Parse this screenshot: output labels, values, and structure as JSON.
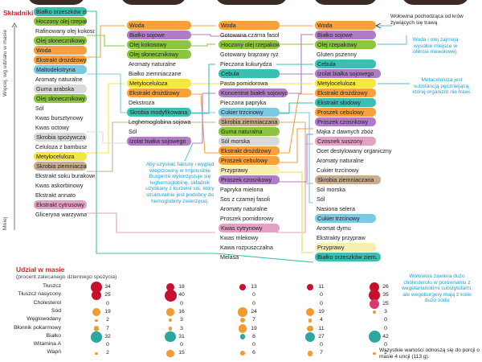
{
  "titles": {
    "ingredients": "Składniki",
    "more": "Więcej, wg udziału w masie",
    "less": "Mniej",
    "nutrition": "Udział w masie",
    "nutrition_sub": "(procent zalecanego dziennego spożycia)",
    "footer": "Wszystkie wartości odnoszą się do porcji o masie 4 uncji (113 g)."
  },
  "notes": {
    "beef": "Wołowina pochodząca od krów żywiących się trawą",
    "water_oil": "Woda i olej zajmują wysokie miejsce w ofercie niewołowej.",
    "methyl": "Metaceluloza jest substancją pęczniejącą, której organizm nie trawi.",
    "heme": "Aby uzyskać fakturę i wygląd wieprzowiny w Impossible Burgerze wykorzystuje się leghemoglobinę, składnik uzyskany z kurzenii soi, który strukturalnie jest podobny do hemoglobiny zwierzęcej.",
    "chol": "Wołowina zawiera dużo cholesterolu w porównaniu z wegetariańskimi substytutami, ale wegeburgery mają z kolei dużo sodu"
  },
  "colors": {
    "green": "#8cc63f",
    "purple": "#b07cc6",
    "yellow": "#f5e642",
    "orange": "#f7a13c",
    "teal": "#3bbfb3",
    "blue": "#7ec8e3",
    "brown": "#c9ad8f",
    "pink": "#e5a0c6",
    "gray": "#d9d9d9",
    "lightyellow": "#f7eeb0",
    "red": "#e0242f",
    "dotred": "#c8102e",
    "dotpink": "#d63b6b",
    "dotorange": "#f29b2f",
    "dotteal": "#2aa8a0"
  },
  "columns": [
    {
      "items": [
        {
          "label": "Białko orzeszków ziem.",
          "color": "teal"
        },
        {
          "label": "Hoczony olej rzepakowy",
          "color": "green"
        },
        {
          "label": "Rafinowany olej kokosowy",
          "color": "none"
        },
        {
          "label": "Olej słonecznikowy",
          "color": "green"
        },
        {
          "label": "Woda",
          "color": "orange"
        },
        {
          "label": "Ekstrakt drożdżowy",
          "color": "orange"
        },
        {
          "label": "Maltodekstryna",
          "color": "blue"
        },
        {
          "label": "Aromaty naturalne",
          "color": "none"
        },
        {
          "label": "Guma arabska",
          "color": "gray"
        },
        {
          "label": "Olej słonecznikowy",
          "color": "green"
        },
        {
          "label": "Sól",
          "color": "none"
        },
        {
          "label": "Kwas bursztynowy",
          "color": "none"
        },
        {
          "label": "Kwas octowy",
          "color": "none"
        },
        {
          "label": "Skrobia spożywcza",
          "color": "gray"
        },
        {
          "label": "Celuloza z bambusa",
          "color": "none"
        },
        {
          "label": "Metyloceluloza",
          "color": "yellow"
        },
        {
          "label": "Skrobia ziemniaczana",
          "color": "brown"
        },
        {
          "label": "Ekstrakt soku burakowego",
          "color": "none"
        },
        {
          "label": "Kwas askorbinowy",
          "color": "none"
        },
        {
          "label": "Ekstrakt annato",
          "color": "none"
        },
        {
          "label": "Ekstrakt cytrusowy",
          "color": "pink"
        },
        {
          "label": "Gliceryna warzywna",
          "color": "none"
        }
      ]
    },
    {
      "items": [
        {
          "label": "Woda",
          "color": "orange"
        },
        {
          "label": "Białko sojowe",
          "color": "purple"
        },
        {
          "label": "Olej kokosowy",
          "color": "green"
        },
        {
          "label": "Olej słonecznikowy",
          "color": "green"
        },
        {
          "label": "Aromaty naturalne",
          "color": "none"
        },
        {
          "label": "Białko ziemniaczane",
          "color": "none"
        },
        {
          "label": "Metyloceluloza",
          "color": "yellow"
        },
        {
          "label": "Ekstrakt drożdżowy",
          "color": "orange"
        },
        {
          "label": "Dekstroza",
          "color": "none"
        },
        {
          "label": "Skrobia modyfikowana",
          "color": "teal"
        },
        {
          "label": "Leghemoglobina sojowa",
          "color": "none"
        },
        {
          "label": "Sól",
          "color": "none"
        },
        {
          "label": "Izolat białka sojowego",
          "color": "purple"
        }
      ]
    },
    {
      "items": [
        {
          "label": "Woda",
          "color": "orange"
        },
        {
          "label": "Gotowana czarna fasola",
          "color": "none"
        },
        {
          "label": "Hoczony olej rzepakowy",
          "color": "green"
        },
        {
          "label": "Gotowany brązowy ryż",
          "color": "none"
        },
        {
          "label": "Pieczona kukurydza",
          "color": "none"
        },
        {
          "label": "Cebula",
          "color": "teal"
        },
        {
          "label": "Pasta pomidorowa",
          "color": "none"
        },
        {
          "label": "Koncentrat białek sojowych",
          "color": "purple"
        },
        {
          "label": "Pieczona papryka",
          "color": "none"
        },
        {
          "label": "Cukier trzcinowy",
          "color": "blue"
        },
        {
          "label": "Skrobia ziemniaczana",
          "color": "brown"
        },
        {
          "label": "Guma naturalna",
          "color": "green"
        },
        {
          "label": "Sól morska",
          "color": "gray"
        },
        {
          "label": "Ekstrakt drożdżowy",
          "color": "orange"
        },
        {
          "label": "Proszek cebulowy",
          "color": "orange"
        },
        {
          "label": "Przyprawy",
          "color": "lightyellow"
        },
        {
          "label": "Proszek czosnkowy",
          "color": "purple"
        },
        {
          "label": "Papryka mielona",
          "color": "none"
        },
        {
          "label": "Sos z czarnej fasoli",
          "color": "none"
        },
        {
          "label": "Aromaty naturalne",
          "color": "none"
        },
        {
          "label": "Proszek pomidorowy",
          "color": "none"
        },
        {
          "label": "Kwas cytrynowy",
          "color": "pink"
        },
        {
          "label": "Kwas mlekowy",
          "color": "none"
        },
        {
          "label": "Kawa rozpuszczalna",
          "color": "none"
        },
        {
          "label": "Melasa",
          "color": "none"
        }
      ]
    },
    {
      "items": [
        {
          "label": "Woda",
          "color": "orange"
        },
        {
          "label": "Białko sojowe",
          "color": "purple"
        },
        {
          "label": "Olej rzepakowy",
          "color": "green"
        },
        {
          "label": "Gluten pszenny",
          "color": "none"
        },
        {
          "label": "Cebula",
          "color": "teal"
        },
        {
          "label": "Izolat białka sojowego",
          "color": "purple"
        },
        {
          "label": "Metyloceluloza",
          "color": "yellow"
        },
        {
          "label": "Ekstrakt drożdżowy",
          "color": "orange"
        },
        {
          "label": "Ekstrakt słodowy",
          "color": "teal"
        },
        {
          "label": "Proszek cebulowy",
          "color": "orange"
        },
        {
          "label": "Proszek czosnkowy",
          "color": "purple"
        },
        {
          "label": "Mąka z dawnych zbóż",
          "color": "none"
        },
        {
          "label": "Czosnek suszony",
          "color": "pink"
        },
        {
          "label": "Ocet destylowany organiczny",
          "color": "none"
        },
        {
          "label": "Aromaty naturalne",
          "color": "none"
        },
        {
          "label": "Cukier trzcinowy",
          "color": "none"
        },
        {
          "label": "Skrobia ziemniaczana",
          "color": "brown"
        },
        {
          "label": "Sól morska",
          "color": "none"
        },
        {
          "label": "Sól",
          "color": "none"
        },
        {
          "label": "Nasiona selera",
          "color": "none"
        },
        {
          "label": "Cukier trzcinowy",
          "color": "blue"
        },
        {
          "label": "Aromat dymu",
          "color": "none"
        },
        {
          "label": "Ekstrakty przypraw",
          "color": "none"
        },
        {
          "label": "Przyprawy",
          "color": "lightyellow"
        },
        {
          "label": "Białko orzeszków ziem.",
          "color": "teal"
        }
      ]
    }
  ],
  "nutrition": {
    "labels": [
      "Tłuszcz",
      "Tłuszcz nasycony",
      "Cholesterol",
      "Sód",
      "Węglowodany",
      "Błonnik pokarmowy",
      "Białko",
      "Witamina A",
      "Wapń"
    ],
    "products": [
      {
        "values": [
          "34",
          "25",
          "0",
          "19",
          "2",
          "7",
          "32",
          "0",
          "2"
        ]
      },
      {
        "values": [
          "18",
          "40",
          "0",
          "16",
          "3",
          "3",
          "31",
          "0",
          "15"
        ]
      },
      {
        "values": [
          "13",
          "0",
          "0",
          "24",
          "7",
          "19",
          "8",
          "0",
          "6"
        ]
      },
      {
        "values": [
          "11",
          "0",
          "0",
          "19",
          "4",
          "11",
          "27",
          "0",
          "7"
        ]
      },
      {
        "values": [
          "26",
          "35",
          "25",
          "3",
          "0",
          "0",
          "42",
          "0",
          "2"
        ]
      }
    ]
  }
}
